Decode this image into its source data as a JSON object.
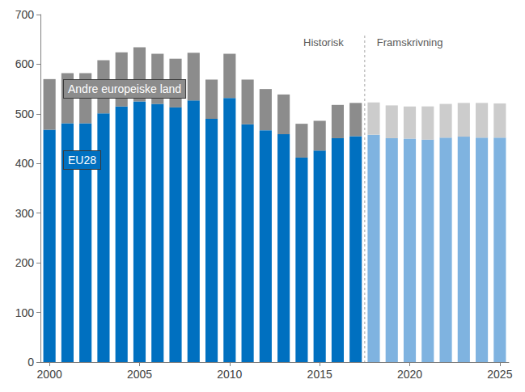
{
  "chart_data": {
    "type": "bar",
    "stacked": true,
    "grid": false,
    "categories": [
      "2000",
      null,
      null,
      null,
      null,
      "2005",
      null,
      null,
      null,
      null,
      "2010",
      null,
      null,
      null,
      null,
      "2015",
      null,
      null,
      null,
      null,
      "2020",
      null,
      null,
      null,
      null,
      "2025"
    ],
    "ylim": [
      0,
      700
    ],
    "yticks": [
      0,
      100,
      200,
      300,
      400,
      500,
      600,
      700
    ],
    "series": [
      {
        "name": "EU28",
        "color": "#0070c0",
        "colors": [
          "#0070c0",
          "#0070c0",
          "#0070c0",
          "#0070c0",
          "#0070c0",
          "#0070c0",
          "#0070c0",
          "#0070c0",
          "#0070c0",
          "#0070c0",
          "#0070c0",
          "#0070c0",
          "#0070c0",
          "#0070c0",
          "#0070c0",
          "#0070c0",
          "#0070c0",
          "#0070c0",
          "#7fb3e0",
          "#7fb3e0",
          "#7fb3e0",
          "#7fb3e0",
          "#7fb3e0",
          "#7fb3e0",
          "#7fb3e0",
          "#7fb3e0"
        ],
        "values": [
          468,
          481,
          481,
          501,
          515,
          525,
          520,
          513,
          527,
          490,
          532,
          479,
          467,
          459,
          412,
          426,
          451,
          455,
          458,
          451,
          450,
          448,
          452,
          454,
          452,
          452
        ]
      },
      {
        "name": "Andre europeiske land",
        "color": "#8c8c8c",
        "colors": [
          "#8c8c8c",
          "#8c8c8c",
          "#8c8c8c",
          "#8c8c8c",
          "#8c8c8c",
          "#8c8c8c",
          "#8c8c8c",
          "#8c8c8c",
          "#8c8c8c",
          "#8c8c8c",
          "#8c8c8c",
          "#8c8c8c",
          "#8c8c8c",
          "#8c8c8c",
          "#8c8c8c",
          "#8c8c8c",
          "#8c8c8c",
          "#8c8c8c",
          "#cccccc",
          "#cccccc",
          "#cccccc",
          "#cccccc",
          "#cccccc",
          "#cccccc",
          "#cccccc",
          "#cccccc"
        ],
        "values": [
          102,
          101,
          101,
          107,
          109,
          109,
          101,
          98,
          96,
          79,
          89,
          90,
          83,
          80,
          68,
          60,
          67,
          67,
          65,
          66,
          65,
          67,
          68,
          68,
          70,
          69
        ]
      }
    ],
    "annotations": [
      {
        "text": "Historisk",
        "x": 17
      },
      {
        "text": "Framskrivning",
        "x": 18
      }
    ]
  }
}
